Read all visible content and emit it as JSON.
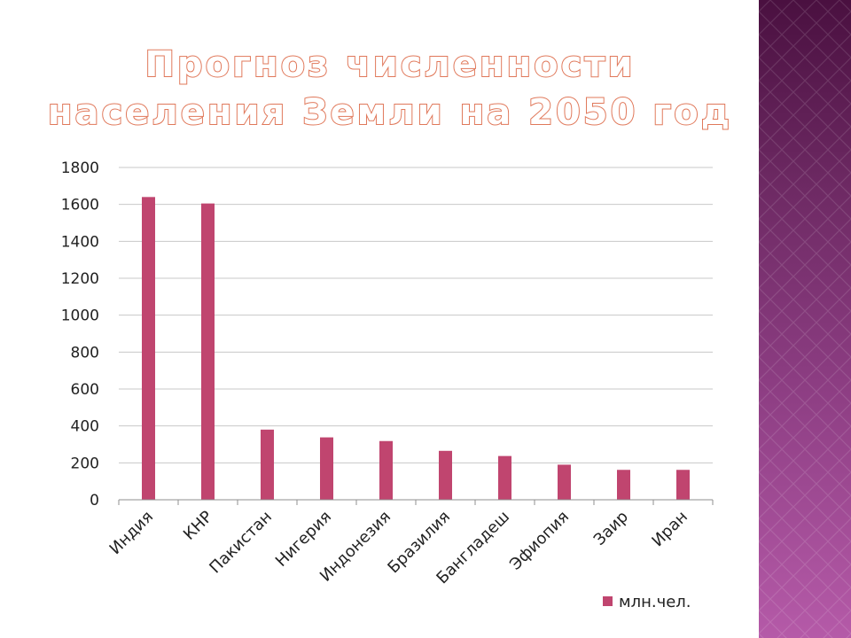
{
  "title": {
    "line1": "Прогноз численности",
    "line2": "населения Земли на 2050 год"
  },
  "colors": {
    "bar": "#c0456f",
    "grid": "#c8c8c8",
    "axis": "#8f8f8f",
    "title_fill": "#ffffff",
    "title_stroke": "#e0785a"
  },
  "chart_data": {
    "type": "bar",
    "title": "Прогноз численности населения Земли на 2050 год",
    "categories": [
      "Индия",
      "КНР",
      "Пакистан",
      "Нигерия",
      "Индонезия",
      "Бразилия",
      "Бангладеш",
      "Эфиопия",
      "Заир",
      "Иран"
    ],
    "series": [
      {
        "name": "млн.чел.",
        "values": [
          1640,
          1605,
          380,
          338,
          318,
          265,
          237,
          190,
          162,
          162
        ]
      }
    ],
    "yticks": [
      0,
      200,
      400,
      600,
      800,
      1000,
      1200,
      1400,
      1600,
      1800
    ],
    "ylim": [
      0,
      1800
    ],
    "grid": true,
    "legend": "bottom-right"
  }
}
